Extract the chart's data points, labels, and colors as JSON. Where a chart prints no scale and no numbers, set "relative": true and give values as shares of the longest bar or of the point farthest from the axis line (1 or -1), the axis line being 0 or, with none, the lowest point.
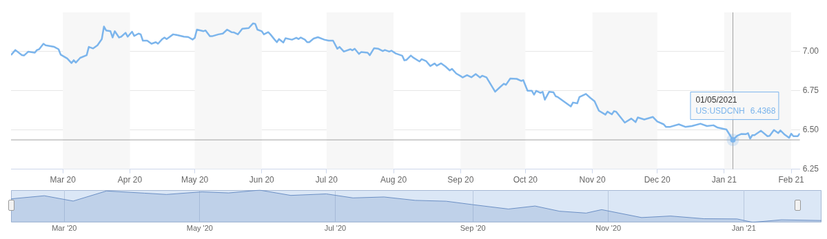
{
  "chart_data": [
    {
      "type": "line",
      "x": [
        "2020-02-06",
        "2020-02-08",
        "2020-02-11",
        "2020-02-12",
        "2020-02-14",
        "2020-02-17",
        "2020-02-18",
        "2020-02-19",
        "2020-02-21",
        "2020-02-22",
        "2020-02-26",
        "2020-02-28",
        "2020-02-29",
        "2020-03-03",
        "2020-03-05",
        "2020-03-06",
        "2020-03-07",
        "2020-03-09",
        "2020-03-12",
        "2020-03-13",
        "2020-03-15",
        "2020-03-17",
        "2020-03-19",
        "2020-03-20",
        "2020-03-21",
        "2020-03-23",
        "2020-03-24",
        "2020-03-25",
        "2020-03-27",
        "2020-03-28",
        "2020-03-30",
        "2020-03-31",
        "2020-04-02",
        "2020-04-03",
        "2020-04-05",
        "2020-04-06",
        "2020-04-07",
        "2020-04-09",
        "2020-04-11",
        "2020-04-13",
        "2020-04-14",
        "2020-04-16",
        "2020-04-17",
        "2020-04-18",
        "2020-04-21",
        "2020-04-23",
        "2020-04-26",
        "2020-04-28",
        "2020-04-30",
        "2020-05-01",
        "2020-05-02",
        "2020-05-05",
        "2020-05-06",
        "2020-05-08",
        "2020-05-09",
        "2020-05-12",
        "2020-05-14",
        "2020-05-16",
        "2020-05-18",
        "2020-05-19",
        "2020-05-21",
        "2020-05-23",
        "2020-05-26",
        "2020-05-28",
        "2020-05-29",
        "2020-05-30",
        "2020-06-01",
        "2020-06-02",
        "2020-06-04",
        "2020-06-05",
        "2020-06-07",
        "2020-06-08",
        "2020-06-09",
        "2020-06-11",
        "2020-06-12",
        "2020-06-15",
        "2020-06-17",
        "2020-06-18",
        "2020-06-19",
        "2020-06-21",
        "2020-06-22",
        "2020-06-23",
        "2020-06-25",
        "2020-06-27",
        "2020-06-30",
        "2020-07-02",
        "2020-07-04",
        "2020-07-06",
        "2020-07-07",
        "2020-07-09",
        "2020-07-12",
        "2020-07-13",
        "2020-07-14",
        "2020-07-16",
        "2020-07-17",
        "2020-07-20",
        "2020-07-21",
        "2020-07-23",
        "2020-07-25",
        "2020-07-27",
        "2020-07-28",
        "2020-07-30",
        "2020-07-31",
        "2020-08-02",
        "2020-08-05",
        "2020-08-06",
        "2020-08-07",
        "2020-08-09",
        "2020-08-10",
        "2020-08-13",
        "2020-08-14",
        "2020-08-16",
        "2020-08-18",
        "2020-08-20",
        "2020-08-21",
        "2020-08-23",
        "2020-08-25",
        "2020-08-27",
        "2020-08-28",
        "2020-08-30",
        "2020-09-01",
        "2020-09-02",
        "2020-09-04",
        "2020-09-06",
        "2020-09-08",
        "2020-09-10",
        "2020-09-11",
        "2020-09-13",
        "2020-09-17",
        "2020-09-19",
        "2020-09-21",
        "2020-09-22",
        "2020-09-24",
        "2020-09-27",
        "2020-09-29",
        "2020-09-30",
        "2020-10-02",
        "2020-10-04",
        "2020-10-05",
        "2020-10-06",
        "2020-10-08",
        "2020-10-09",
        "2020-10-10",
        "2020-10-12",
        "2020-10-14",
        "2020-10-15",
        "2020-10-16",
        "2020-10-19",
        "2020-10-22",
        "2020-10-23",
        "2020-10-25",
        "2020-10-26",
        "2020-10-29",
        "2020-10-31",
        "2020-11-02",
        "2020-11-04",
        "2020-11-07",
        "2020-11-08",
        "2020-11-10",
        "2020-11-11",
        "2020-11-12",
        "2020-11-16",
        "2020-11-19",
        "2020-11-21",
        "2020-11-22",
        "2020-11-25",
        "2020-11-29",
        "2020-12-01",
        "2020-12-04",
        "2020-12-05",
        "2020-12-07",
        "2020-12-11",
        "2020-12-14",
        "2020-12-17",
        "2020-12-21",
        "2020-12-24",
        "2020-12-27",
        "2020-12-29",
        "2021-01-02",
        "2021-01-04",
        "2021-01-05",
        "2021-01-07",
        "2021-01-09",
        "2021-01-11",
        "2021-01-12",
        "2021-01-13",
        "2021-01-14",
        "2021-01-15",
        "2021-01-18",
        "2021-01-21",
        "2021-01-22",
        "2021-01-24",
        "2021-01-26",
        "2021-01-27",
        "2021-01-29",
        "2021-01-31",
        "2021-02-01",
        "2021-02-02",
        "2021-02-04",
        "2021-02-05"
      ],
      "series": [
        {
          "name": "US:USDCNH",
          "color": "#7cb5ec",
          "values": [
            6.978,
            7.01,
            6.978,
            6.975,
            7.0,
            6.993,
            7.01,
            7.015,
            7.05,
            7.04,
            7.03,
            7.015,
            6.98,
            6.956,
            6.927,
            6.945,
            6.93,
            6.96,
            6.977,
            7.03,
            7.02,
            7.04,
            7.08,
            7.16,
            7.135,
            7.13,
            7.09,
            7.13,
            7.09,
            7.095,
            7.12,
            7.095,
            7.127,
            7.1,
            7.115,
            7.11,
            7.07,
            7.07,
            7.05,
            7.06,
            7.05,
            7.08,
            7.09,
            7.08,
            7.11,
            7.105,
            7.095,
            7.093,
            7.077,
            7.087,
            7.14,
            7.13,
            7.135,
            7.098,
            7.098,
            7.11,
            7.115,
            7.14,
            7.124,
            7.123,
            7.11,
            7.146,
            7.15,
            7.18,
            7.177,
            7.14,
            7.13,
            7.11,
            7.124,
            7.11,
            7.076,
            7.06,
            7.08,
            7.058,
            7.085,
            7.076,
            7.088,
            7.08,
            7.09,
            7.076,
            7.06,
            7.06,
            7.083,
            7.092,
            7.076,
            7.07,
            7.07,
            7.018,
            7.03,
            7.0,
            7.015,
            7.008,
            7.018,
            6.985,
            6.997,
            6.993,
            6.977,
            7.022,
            7.018,
            7.003,
            7.01,
            7.0,
            7.006,
            6.988,
            6.974,
            6.944,
            6.947,
            6.975,
            6.963,
            6.937,
            6.952,
            6.94,
            6.908,
            6.924,
            6.91,
            6.925,
            6.905,
            6.88,
            6.89,
            6.86,
            6.844,
            6.835,
            6.85,
            6.836,
            6.857,
            6.835,
            6.846,
            6.835,
            6.744,
            6.77,
            6.795,
            6.788,
            6.828,
            6.826,
            6.813,
            6.818,
            6.75,
            6.75,
            6.725,
            6.75,
            6.737,
            6.743,
            6.693,
            6.744,
            6.74,
            6.715,
            6.71,
            6.68,
            6.65,
            6.675,
            6.67,
            6.71,
            6.73,
            6.705,
            6.683,
            6.623,
            6.598,
            6.617,
            6.6,
            6.62,
            6.616,
            6.547,
            6.573,
            6.55,
            6.58,
            6.567,
            6.583,
            6.554,
            6.536,
            6.52,
            6.52,
            6.536,
            6.52,
            6.525,
            6.54,
            6.525,
            6.53,
            6.515,
            6.503,
            6.459,
            6.4368,
            6.463,
            6.475,
            6.473,
            6.48,
            6.445,
            6.467,
            6.467,
            6.495,
            6.46,
            6.462,
            6.5,
            6.48,
            6.497,
            6.47,
            6.45,
            6.476,
            6.46,
            6.46,
            6.478
          ],
          "value_labels": [
            null,
            null,
            null,
            null,
            null,
            null,
            null,
            null,
            null,
            null,
            null,
            null,
            null,
            null,
            null,
            null,
            null,
            null,
            null,
            null,
            null,
            null,
            null,
            null,
            null,
            null,
            null,
            null,
            null,
            null,
            null,
            null,
            null,
            null,
            null,
            null,
            null,
            null,
            null,
            null,
            null,
            null,
            null,
            null,
            null,
            null,
            null,
            null,
            null,
            null,
            null,
            null,
            null,
            null,
            null,
            null,
            null,
            null,
            null,
            null,
            null,
            null,
            null,
            null,
            null,
            null,
            null,
            null,
            null,
            null,
            null,
            null,
            null,
            null,
            null,
            null,
            null,
            null,
            null,
            null,
            null,
            null,
            null,
            null,
            null,
            null,
            null,
            null,
            null,
            null,
            null,
            null,
            null,
            null,
            null,
            null,
            null,
            null,
            null,
            null,
            null,
            null,
            null,
            null,
            null,
            null,
            null,
            null,
            null,
            null,
            null,
            null,
            null,
            null,
            null,
            null,
            null,
            null,
            null,
            null,
            null,
            null,
            null,
            null,
            null,
            null,
            null,
            null,
            null,
            null,
            null,
            null,
            null,
            null,
            null,
            null,
            null,
            null,
            null,
            null,
            null,
            null,
            null,
            null,
            null,
            null,
            null,
            null,
            null,
            null,
            null,
            null,
            null,
            null,
            null,
            null,
            null,
            null,
            null,
            null,
            null,
            null,
            null,
            null,
            null,
            null,
            null,
            null,
            null,
            null,
            null,
            null,
            null,
            null,
            null,
            null,
            null,
            null,
            null,
            null,
            "6.4368",
            null,
            null,
            null,
            null,
            null,
            null,
            null,
            null,
            null,
            null,
            null,
            null,
            null,
            null,
            null,
            null,
            null,
            null,
            null
          ]
        }
      ],
      "xlim": [
        "2020-02-06",
        "2021-02-05"
      ],
      "xticks": [
        {
          "value": "2020-03-01",
          "label": "Mar 20"
        },
        {
          "value": "2020-04-01",
          "label": "Apr 20"
        },
        {
          "value": "2020-05-01",
          "label": "May 20"
        },
        {
          "value": "2020-06-01",
          "label": "Jun 20"
        },
        {
          "value": "2020-07-01",
          "label": "Jul 20"
        },
        {
          "value": "2020-08-01",
          "label": "Aug 20"
        },
        {
          "value": "2020-09-01",
          "label": "Sep 20"
        },
        {
          "value": "2020-10-01",
          "label": "Oct 20"
        },
        {
          "value": "2020-11-01",
          "label": "Nov 20"
        },
        {
          "value": "2020-12-01",
          "label": "Dec 20"
        },
        {
          "value": "2021-01-01",
          "label": "Jan 21"
        },
        {
          "value": "2021-02-01",
          "label": "Feb 21"
        }
      ],
      "ylim": [
        6.25,
        7.25
      ],
      "yticks": [
        {
          "value": 6.25,
          "label": "6.25"
        },
        {
          "value": 6.5,
          "label": "6.50"
        },
        {
          "value": 6.75,
          "label": "6.75"
        },
        {
          "value": 7,
          "label": "7.00"
        }
      ],
      "grid": "y",
      "marker": "none",
      "bands": [
        {
          "axis": "x",
          "from": "2020-03-01",
          "to": "2020-04-01",
          "color": "#f7f7f7"
        },
        {
          "axis": "x",
          "from": "2020-05-01",
          "to": "2020-06-01",
          "color": "#f7f7f7"
        },
        {
          "axis": "x",
          "from": "2020-07-01",
          "to": "2020-08-01",
          "color": "#f7f7f7"
        },
        {
          "axis": "x",
          "from": "2020-09-01",
          "to": "2020-10-01",
          "color": "#f7f7f7"
        },
        {
          "axis": "x",
          "from": "2020-11-01",
          "to": "2020-12-01",
          "color": "#f7f7f7"
        },
        {
          "axis": "x",
          "from": "2021-01-01",
          "to": "2021-02-01",
          "color": "#f7f7f7"
        }
      ],
      "ref_lines": [
        {
          "axis": "x",
          "value": "2021-01-05",
          "color": "#a0a0a0"
        },
        {
          "axis": "y",
          "value": 6.4368,
          "color": "#a0a0a0"
        }
      ],
      "annotations": [
        "01/05/2021"
      ]
    },
    {
      "type": "area",
      "relative": true,
      "x": [
        "2020-02-06",
        "2020-02-21",
        "2020-03-05",
        "2020-03-20",
        "2020-04-06",
        "2020-04-16",
        "2020-05-02",
        "2020-05-14",
        "2020-05-28",
        "2020-06-11",
        "2020-06-27",
        "2020-07-09",
        "2020-07-23",
        "2020-08-06",
        "2020-08-20",
        "2020-09-01",
        "2020-09-17",
        "2020-09-29",
        "2020-10-10",
        "2020-10-22",
        "2020-10-29",
        "2020-11-16",
        "2020-11-29",
        "2020-12-14",
        "2020-12-29",
        "2021-01-05",
        "2021-01-18",
        "2021-02-05"
      ],
      "series": [
        {
          "color": "#6b8fc4",
          "values": [
            0.728,
            0.825,
            0.66,
            0.973,
            0.906,
            0.865,
            0.946,
            0.912,
            1,
            0.836,
            0.882,
            0.758,
            0.787,
            0.682,
            0.655,
            0.548,
            0.413,
            0.506,
            0.345,
            0.287,
            0.394,
            0.148,
            0.196,
            0.112,
            0.105,
            0,
            0.078,
            0.056
          ]
        }
      ],
      "xlim": [
        "2020-02-06",
        "2021-02-05"
      ],
      "xticks": [
        {
          "value": "2020-03-01",
          "label": "Mar '20"
        },
        {
          "value": "2020-05-01",
          "label": "May '20"
        },
        {
          "value": "2020-07-01",
          "label": "Jul '20"
        },
        {
          "value": "2020-09-01",
          "label": "Sep '20"
        },
        {
          "value": "2020-11-01",
          "label": "Nov '20"
        },
        {
          "value": "2021-01-01",
          "label": "Jan '21"
        }
      ],
      "tick_labels": "x",
      "grid": "x",
      "marker": "none"
    }
  ]
}
